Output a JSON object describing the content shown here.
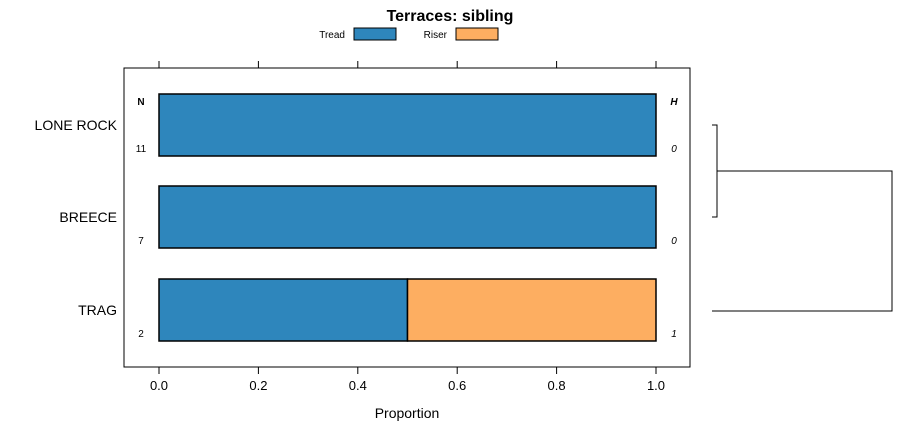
{
  "chart_data": {
    "type": "bar",
    "orientation": "horizontal",
    "stacked": true,
    "title": "Terraces: sibling",
    "xlabel": "Proportion",
    "ylabel": "",
    "xlim": [
      -0.07,
      1.07
    ],
    "xticks": [
      0.0,
      0.2,
      0.4,
      0.6,
      0.8,
      1.0
    ],
    "xtick_labels": [
      "0.0",
      "0.2",
      "0.4",
      "0.6",
      "0.8",
      "1.0"
    ],
    "categories": [
      "LONE ROCK",
      "BREECE",
      "TRAG"
    ],
    "series": [
      {
        "name": "Tread",
        "color": "#2e86bc",
        "values": [
          1.0,
          1.0,
          0.5
        ]
      },
      {
        "name": "Riser",
        "color": "#fdae61",
        "values": [
          0.0,
          0.0,
          0.5
        ]
      }
    ],
    "n_header": "N",
    "h_header": "H",
    "n_values": [
      "11",
      "7",
      "2"
    ],
    "h_values": [
      "0",
      "0",
      "1"
    ],
    "legend_position": "top",
    "dendrogram": {
      "groups": [
        [
          "LONE ROCK",
          "BREECE"
        ],
        [
          "TRAG"
        ]
      ]
    }
  }
}
